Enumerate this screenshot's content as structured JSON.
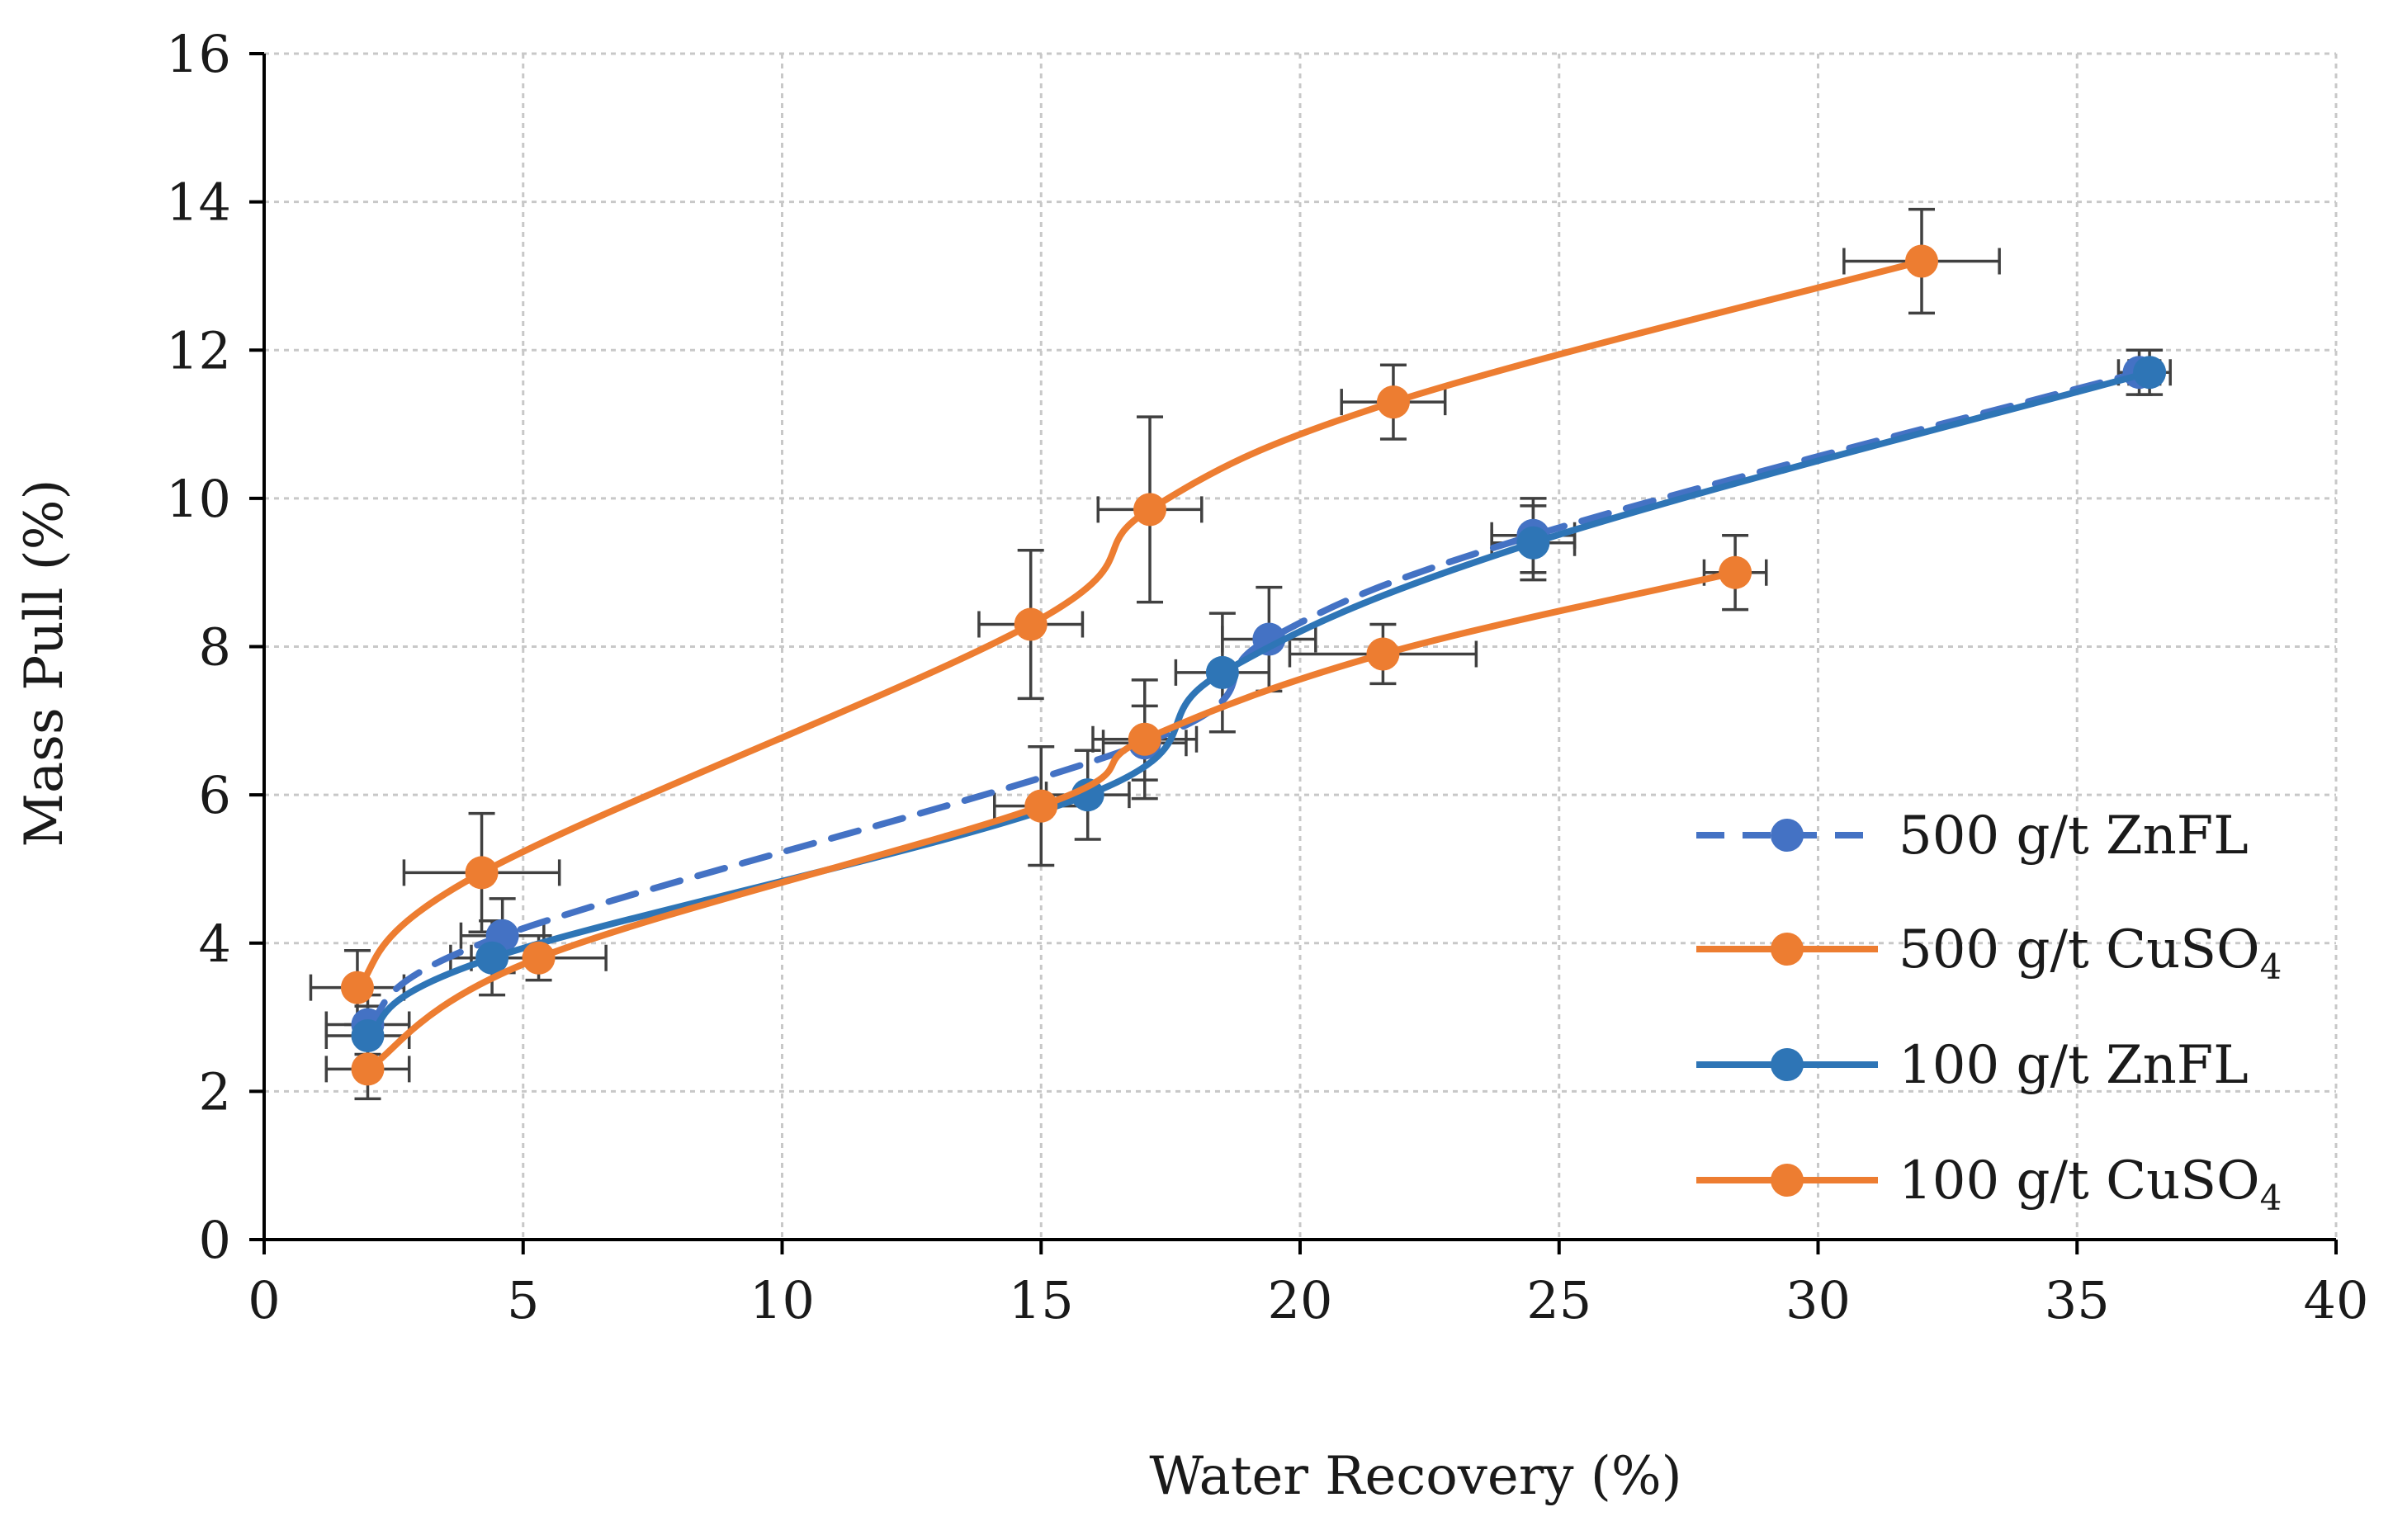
{
  "chart_data": {
    "type": "line",
    "title": "",
    "xlabel": "Water Recovery (%)",
    "ylabel": "Mass Pull (%)",
    "xlim": [
      0,
      40
    ],
    "ylim": [
      0,
      16
    ],
    "xticks": [
      0,
      5,
      10,
      15,
      20,
      25,
      30,
      35,
      40
    ],
    "yticks": [
      0,
      2,
      4,
      6,
      8,
      10,
      12,
      14,
      16
    ],
    "grid": true,
    "legend_position": "right",
    "series": [
      {
        "name": "500 g/t ZnFL",
        "color": "#4472C4",
        "style": "dashed",
        "points": [
          {
            "x": 2.0,
            "y": 2.9,
            "xerr": 0.8,
            "yerr": 0.4
          },
          {
            "x": 4.6,
            "y": 4.1,
            "xerr": 0.8,
            "yerr": 0.5
          },
          {
            "x": 17.0,
            "y": 6.7,
            "xerr": 0.8,
            "yerr": 0.5
          },
          {
            "x": 19.4,
            "y": 8.1,
            "xerr": 0.9,
            "yerr": 0.7
          },
          {
            "x": 24.5,
            "y": 9.5,
            "xerr": 0.8,
            "yerr": 0.5
          },
          {
            "x": 36.2,
            "y": 11.7,
            "xerr": 0.4,
            "yerr": 0.3
          }
        ]
      },
      {
        "name": "500 g/t CuSO",
        "name_sub": "4",
        "color": "#ED7D31",
        "style": "solid",
        "points": [
          {
            "x": 1.8,
            "y": 3.4,
            "xerr": 0.9,
            "yerr": 0.5
          },
          {
            "x": 4.2,
            "y": 4.95,
            "xerr": 1.5,
            "yerr": 0.8
          },
          {
            "x": 14.8,
            "y": 8.3,
            "xerr": 1.0,
            "yerr": 1.0
          },
          {
            "x": 17.1,
            "y": 9.85,
            "xerr": 1.0,
            "yerr": 1.25
          },
          {
            "x": 21.8,
            "y": 11.3,
            "xerr": 1.0,
            "yerr": 0.5
          },
          {
            "x": 32.0,
            "y": 13.2,
            "xerr": 1.5,
            "yerr": 0.7
          }
        ]
      },
      {
        "name": "100 g/t ZnFL",
        "color": "#2E75B6",
        "style": "solid",
        "points": [
          {
            "x": 2.0,
            "y": 2.75,
            "xerr": 0.8,
            "yerr": 0.4
          },
          {
            "x": 4.4,
            "y": 3.8,
            "xerr": 0.8,
            "yerr": 0.5
          },
          {
            "x": 15.9,
            "y": 6.0,
            "xerr": 0.8,
            "yerr": 0.6
          },
          {
            "x": 18.5,
            "y": 7.65,
            "xerr": 0.9,
            "yerr": 0.8
          },
          {
            "x": 24.5,
            "y": 9.4,
            "xerr": 0.8,
            "yerr": 0.5
          },
          {
            "x": 36.4,
            "y": 11.7,
            "xerr": 0.4,
            "yerr": 0.3
          }
        ]
      },
      {
        "name": "100 g/t CuSO",
        "name_sub": "4",
        "color": "#ED7D31",
        "style": "solid",
        "points": [
          {
            "x": 2.0,
            "y": 2.3,
            "xerr": 0.8,
            "yerr": 0.4
          },
          {
            "x": 5.3,
            "y": 3.8,
            "xerr": 1.3,
            "yerr": 0.3
          },
          {
            "x": 15.0,
            "y": 5.85,
            "xerr": 0.9,
            "yerr": 0.8
          },
          {
            "x": 17.0,
            "y": 6.75,
            "xerr": 1.0,
            "yerr": 0.8
          },
          {
            "x": 21.6,
            "y": 7.9,
            "xerr": 1.8,
            "yerr": 0.4
          },
          {
            "x": 28.4,
            "y": 9.0,
            "xerr": 0.6,
            "yerr": 0.5
          }
        ]
      }
    ]
  }
}
